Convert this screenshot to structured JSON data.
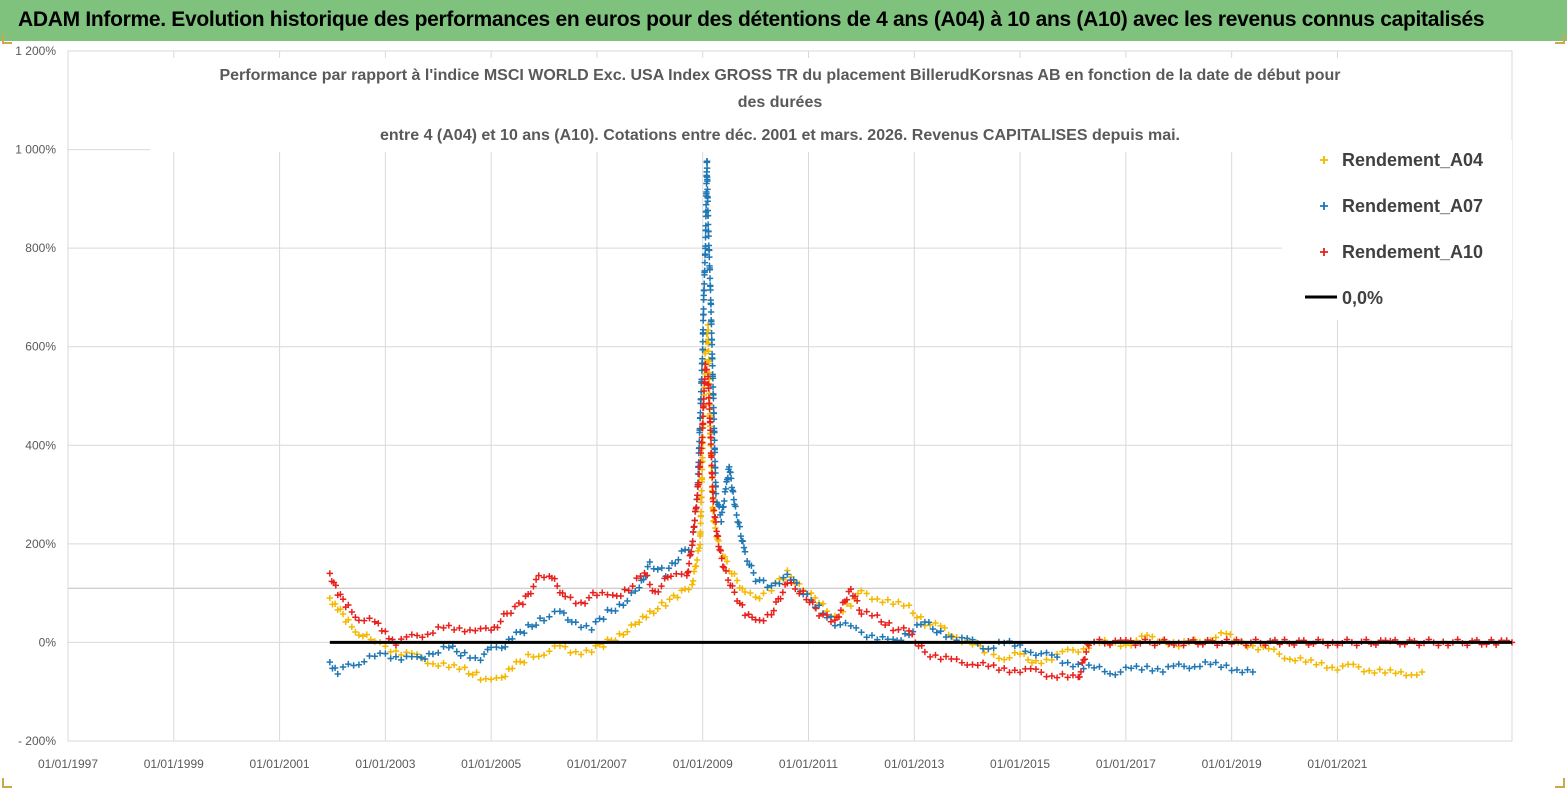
{
  "banner": {
    "title": "ADAM Informe. Evolution historique des performances en euros pour des détentions de 4 ans (A04) à 10 ans (A10) avec les revenus connus capitalisés",
    "color": "#7ec27d"
  },
  "chart_data": {
    "type": "scatter",
    "title_lines": [
      "Performance par rapport à l'indice MSCI WORLD Exc. USA Index GROSS TR  du placement BillerudKorsnas AB en fonction de la date de début pour",
      "des durées",
      "entre 4 (A04) et 10 ans (A10). Cotations entre déc. 2001 et mars. 2026. Revenus CAPITALISES depuis mai."
    ],
    "xlabel": "",
    "ylabel": "",
    "x_tick_labels": [
      "01/01/1997",
      "01/01/1999",
      "01/01/2001",
      "01/01/2003",
      "01/01/2005",
      "01/01/2007",
      "01/01/2009",
      "01/01/2011",
      "01/01/2013",
      "01/01/2015",
      "01/01/2017",
      "01/01/2019",
      "01/01/2021"
    ],
    "y_tick_labels": [
      "- 200%",
      "0%",
      "200%",
      "400%",
      "600%",
      "800%",
      "1 000%",
      "1 200%"
    ],
    "xlim": [
      1997.0,
      2024.3
    ],
    "ylim": [
      -200,
      1200
    ],
    "legend_position": "top-right",
    "series": [
      {
        "name": "Rendement_A04",
        "color": "#f5b800",
        "marker": "+",
        "points": [
          [
            2001.95,
            90
          ],
          [
            2002.1,
            70
          ],
          [
            2002.3,
            40
          ],
          [
            2002.5,
            20
          ],
          [
            2002.8,
            0
          ],
          [
            2003.0,
            -10
          ],
          [
            2003.3,
            -20
          ],
          [
            2003.6,
            -30
          ],
          [
            2003.9,
            -40
          ],
          [
            2004.2,
            -50
          ],
          [
            2004.5,
            -55
          ],
          [
            2004.8,
            -70
          ],
          [
            2005.0,
            -80
          ],
          [
            2005.2,
            -70
          ],
          [
            2005.4,
            -50
          ],
          [
            2005.7,
            -30
          ],
          [
            2006.0,
            -20
          ],
          [
            2006.3,
            -10
          ],
          [
            2006.6,
            -20
          ],
          [
            2006.9,
            -15
          ],
          [
            2007.2,
            0
          ],
          [
            2007.5,
            20
          ],
          [
            2007.8,
            40
          ],
          [
            2008.0,
            60
          ],
          [
            2008.3,
            80
          ],
          [
            2008.6,
            100
          ],
          [
            2008.8,
            120
          ],
          [
            2008.95,
            200
          ],
          [
            2009.0,
            400
          ],
          [
            2009.05,
            600
          ],
          [
            2009.1,
            640
          ],
          [
            2009.15,
            400
          ],
          [
            2009.2,
            250
          ],
          [
            2009.3,
            200
          ],
          [
            2009.5,
            150
          ],
          [
            2009.8,
            100
          ],
          [
            2010.0,
            90
          ],
          [
            2010.3,
            110
          ],
          [
            2010.6,
            140
          ],
          [
            2010.9,
            110
          ],
          [
            2011.2,
            80
          ],
          [
            2011.5,
            50
          ],
          [
            2011.8,
            80
          ],
          [
            2012.0,
            100
          ],
          [
            2012.3,
            90
          ],
          [
            2012.6,
            80
          ],
          [
            2012.9,
            70
          ],
          [
            2013.2,
            40
          ],
          [
            2013.5,
            30
          ],
          [
            2013.8,
            10
          ],
          [
            2014.1,
            0
          ],
          [
            2014.4,
            -20
          ],
          [
            2014.7,
            -30
          ],
          [
            2015.0,
            -25
          ],
          [
            2015.3,
            -40
          ],
          [
            2015.6,
            -30
          ],
          [
            2015.9,
            -20
          ],
          [
            2016.2,
            -10
          ],
          [
            2016.5,
            0
          ],
          [
            2016.8,
            -5
          ],
          [
            2017.1,
            0
          ],
          [
            2017.4,
            10
          ],
          [
            2017.7,
            5
          ],
          [
            2018.0,
            -5
          ],
          [
            2018.3,
            0
          ],
          [
            2018.6,
            10
          ],
          [
            2018.9,
            15
          ],
          [
            2019.2,
            0
          ],
          [
            2019.5,
            -10
          ],
          [
            2019.8,
            -20
          ],
          [
            2020.1,
            -30
          ],
          [
            2020.4,
            -40
          ],
          [
            2020.7,
            -45
          ],
          [
            2021.0,
            -50
          ],
          [
            2021.3,
            -50
          ],
          [
            2021.6,
            -55
          ],
          [
            2021.9,
            -60
          ],
          [
            2022.2,
            -65
          ],
          [
            2022.5,
            -60
          ],
          [
            2022.6,
            -60
          ]
        ]
      },
      {
        "name": "Rendement_A07",
        "color": "#1f77b4",
        "marker": "+",
        "points": [
          [
            2001.95,
            -40
          ],
          [
            2002.1,
            -60
          ],
          [
            2002.3,
            -50
          ],
          [
            2002.5,
            -40
          ],
          [
            2002.8,
            -30
          ],
          [
            2003.0,
            -25
          ],
          [
            2003.3,
            -30
          ],
          [
            2003.6,
            -35
          ],
          [
            2003.9,
            -20
          ],
          [
            2004.2,
            -10
          ],
          [
            2004.5,
            -25
          ],
          [
            2004.8,
            -30
          ],
          [
            2005.0,
            -15
          ],
          [
            2005.2,
            -10
          ],
          [
            2005.4,
            10
          ],
          [
            2005.7,
            30
          ],
          [
            2006.0,
            50
          ],
          [
            2006.3,
            60
          ],
          [
            2006.6,
            40
          ],
          [
            2006.9,
            30
          ],
          [
            2007.2,
            60
          ],
          [
            2007.5,
            80
          ],
          [
            2007.8,
            110
          ],
          [
            2008.0,
            160
          ],
          [
            2008.3,
            140
          ],
          [
            2008.6,
            180
          ],
          [
            2008.8,
            200
          ],
          [
            2008.9,
            300
          ],
          [
            2008.95,
            450
          ],
          [
            2009.0,
            600
          ],
          [
            2009.02,
            700
          ],
          [
            2009.05,
            800
          ],
          [
            2009.08,
            980
          ],
          [
            2009.1,
            860
          ],
          [
            2009.15,
            700
          ],
          [
            2009.2,
            500
          ],
          [
            2009.25,
            300
          ],
          [
            2009.35,
            250
          ],
          [
            2009.45,
            320
          ],
          [
            2009.5,
            360
          ],
          [
            2009.6,
            280
          ],
          [
            2009.8,
            180
          ],
          [
            2010.0,
            130
          ],
          [
            2010.3,
            110
          ],
          [
            2010.6,
            140
          ],
          [
            2010.9,
            100
          ],
          [
            2011.2,
            70
          ],
          [
            2011.5,
            40
          ],
          [
            2011.8,
            30
          ],
          [
            2012.0,
            20
          ],
          [
            2012.3,
            10
          ],
          [
            2012.6,
            0
          ],
          [
            2012.9,
            20
          ],
          [
            2013.2,
            40
          ],
          [
            2013.5,
            20
          ],
          [
            2013.8,
            10
          ],
          [
            2014.1,
            0
          ],
          [
            2014.4,
            -10
          ],
          [
            2014.7,
            0
          ],
          [
            2015.0,
            -10
          ],
          [
            2015.3,
            -20
          ],
          [
            2015.6,
            -30
          ],
          [
            2015.9,
            -40
          ],
          [
            2016.2,
            -50
          ],
          [
            2016.5,
            -55
          ],
          [
            2016.8,
            -60
          ],
          [
            2017.1,
            -55
          ],
          [
            2017.4,
            -50
          ],
          [
            2017.7,
            -55
          ],
          [
            2018.0,
            -50
          ],
          [
            2018.3,
            -45
          ],
          [
            2018.6,
            -45
          ],
          [
            2018.9,
            -50
          ],
          [
            2019.2,
            -55
          ],
          [
            2019.4,
            -60
          ]
        ]
      },
      {
        "name": "Rendement_A10",
        "color": "#e8211d",
        "marker": "+",
        "points": [
          [
            2001.95,
            140
          ],
          [
            2002.1,
            100
          ],
          [
            2002.3,
            70
          ],
          [
            2002.5,
            50
          ],
          [
            2002.8,
            40
          ],
          [
            2003.0,
            20
          ],
          [
            2003.2,
            0
          ],
          [
            2003.5,
            10
          ],
          [
            2003.8,
            20
          ],
          [
            2004.1,
            30
          ],
          [
            2004.4,
            25
          ],
          [
            2004.7,
            30
          ],
          [
            2005.0,
            20
          ],
          [
            2005.3,
            60
          ],
          [
            2005.6,
            80
          ],
          [
            2005.9,
            130
          ],
          [
            2006.1,
            140
          ],
          [
            2006.4,
            90
          ],
          [
            2006.7,
            80
          ],
          [
            2007.0,
            100
          ],
          [
            2007.3,
            90
          ],
          [
            2007.6,
            110
          ],
          [
            2007.9,
            140
          ],
          [
            2008.1,
            100
          ],
          [
            2008.4,
            140
          ],
          [
            2008.7,
            130
          ],
          [
            2008.8,
            200
          ],
          [
            2008.9,
            300
          ],
          [
            2008.98,
            400
          ],
          [
            2009.02,
            500
          ],
          [
            2009.05,
            560
          ],
          [
            2009.1,
            540
          ],
          [
            2009.15,
            420
          ],
          [
            2009.2,
            280
          ],
          [
            2009.3,
            200
          ],
          [
            2009.4,
            150
          ],
          [
            2009.6,
            100
          ],
          [
            2009.8,
            60
          ],
          [
            2010.0,
            40
          ],
          [
            2010.3,
            60
          ],
          [
            2010.6,
            120
          ],
          [
            2010.9,
            100
          ],
          [
            2011.2,
            60
          ],
          [
            2011.5,
            40
          ],
          [
            2011.8,
            110
          ],
          [
            2012.0,
            60
          ],
          [
            2012.3,
            50
          ],
          [
            2012.6,
            30
          ],
          [
            2012.9,
            20
          ],
          [
            2013.2,
            -20
          ],
          [
            2013.5,
            -30
          ],
          [
            2013.8,
            -40
          ],
          [
            2014.1,
            -40
          ],
          [
            2014.4,
            -50
          ],
          [
            2014.7,
            -55
          ],
          [
            2015.0,
            -55
          ],
          [
            2015.3,
            -60
          ],
          [
            2015.6,
            -65
          ],
          [
            2015.9,
            -70
          ],
          [
            2016.1,
            -75
          ],
          [
            2016.3,
            0
          ],
          [
            2017.0,
            0
          ],
          [
            2018.0,
            0
          ],
          [
            2019.0,
            0
          ],
          [
            2020.0,
            0
          ],
          [
            2021.0,
            0
          ],
          [
            2022.0,
            0
          ],
          [
            2023.0,
            0
          ],
          [
            2024.0,
            0
          ],
          [
            2024.3,
            0
          ]
        ]
      },
      {
        "name": "0,0%",
        "color": "#000000",
        "type": "line",
        "points": [
          [
            2001.95,
            0
          ],
          [
            2024.3,
            0
          ]
        ]
      }
    ]
  }
}
